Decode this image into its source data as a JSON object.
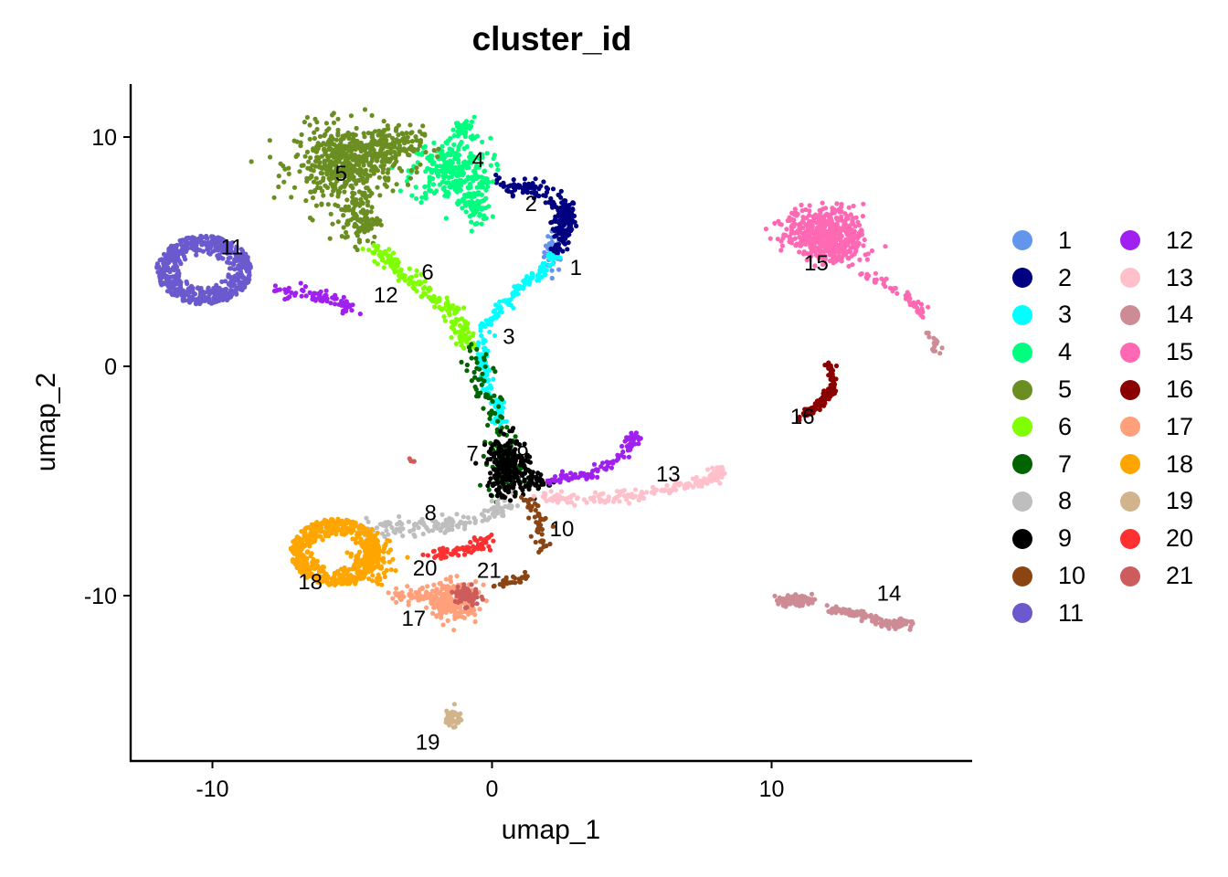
{
  "chart_data": {
    "type": "scatter",
    "title": "cluster_id",
    "xlabel": "umap_1",
    "ylabel": "umap_2",
    "xlim": [
      -12.9,
      17.2
    ],
    "ylim": [
      -17.2,
      12.4
    ],
    "x_ticks": [
      -10,
      0,
      10
    ],
    "y_ticks": [
      -10,
      0,
      10
    ],
    "x_tick_labels": [
      "-10",
      "0",
      "10"
    ],
    "y_tick_labels": [
      "-10",
      "0",
      "10"
    ],
    "grid": false,
    "legend_position": "right",
    "legend_columns": 2,
    "series": [
      {
        "name": "1",
        "color": "#6495ED",
        "label_pos": [
          3.0,
          4.3
        ],
        "blobs": [
          [
            2.2,
            5.0,
            0.3,
            0.8,
            40
          ]
        ]
      },
      {
        "name": "2",
        "color": "#000080",
        "label_pos": [
          1.4,
          7.1
        ],
        "blobs": [
          [
            2.6,
            6.4,
            0.35,
            0.9,
            120
          ],
          [
            1.2,
            7.8,
            0.8,
            0.3,
            50
          ]
        ],
        "paths": [
          [
            [
              0.0,
              8.2
            ],
            [
              1.5,
              7.6
            ],
            [
              2.5,
              6.8
            ],
            [
              2.5,
              5.5
            ],
            [
              2.3,
              4.9
            ]
          ],
          80,
          0.12
        ]
      },
      {
        "name": "3",
        "color": "#00FFFF",
        "label_pos": [
          0.6,
          1.3
        ],
        "paths": [
          [
            [
              2.3,
              4.8
            ],
            [
              1.5,
              3.9
            ],
            [
              0.6,
              3.0
            ],
            [
              -0.2,
              1.8
            ],
            [
              -0.4,
              0.0
            ],
            [
              0.1,
              -1.5
            ],
            [
              0.3,
              -2.5
            ]
          ],
          200,
          0.12
        ]
      },
      {
        "name": "4",
        "color": "#00FF7F",
        "label_pos": [
          -0.5,
          9.0
        ],
        "blobs": [
          [
            -1.5,
            8.5,
            1.3,
            1.3,
            260
          ],
          [
            -0.6,
            7.0,
            0.5,
            0.9,
            80
          ],
          [
            -1.0,
            10.3,
            0.4,
            0.5,
            40
          ]
        ]
      },
      {
        "name": "5",
        "color": "#6B8E23",
        "label_pos": [
          -5.4,
          8.4
        ],
        "blobs": [
          [
            -5.3,
            8.8,
            1.6,
            1.5,
            480
          ],
          [
            -3.8,
            9.6,
            1.2,
            0.8,
            160
          ],
          [
            -4.7,
            6.4,
            0.6,
            1.0,
            100
          ]
        ]
      },
      {
        "name": "6",
        "color": "#7FFF00",
        "label_pos": [
          -2.3,
          4.1
        ],
        "paths": [
          [
            [
              -4.3,
              5.2
            ],
            [
              -3.5,
              4.5
            ],
            [
              -2.5,
              3.5
            ],
            [
              -1.5,
              2.5
            ],
            [
              -1.0,
              1.5
            ],
            [
              -0.9,
              1.0
            ]
          ],
          180,
          0.18
        ]
      },
      {
        "name": "7",
        "color": "#006400",
        "label_pos": [
          -0.7,
          -3.8
        ],
        "blobs": [
          [
            0.5,
            -4.6,
            0.6,
            0.8,
            90
          ]
        ],
        "paths": [
          [
            [
              -0.7,
              0.8
            ],
            [
              -0.3,
              -1.0
            ],
            [
              0.3,
              -2.8
            ],
            [
              0.5,
              -4.8
            ]
          ],
          80,
          0.25
        ]
      },
      {
        "name": "8",
        "color": "#BEBEBE",
        "label_pos": [
          -2.2,
          -6.4
        ],
        "paths": [
          [
            [
              -4.6,
              -7.2
            ],
            [
              -3.0,
              -7.0
            ],
            [
              -1.5,
              -6.9
            ],
            [
              0.0,
              -6.5
            ],
            [
              0.6,
              -5.7
            ]
          ],
          150,
          0.2
        ]
      },
      {
        "name": "9",
        "color": "#000000",
        "label_pos": [
          1.1,
          -3.8
        ],
        "blobs": [
          [
            0.6,
            -4.4,
            0.7,
            1.2,
            220
          ],
          [
            1.6,
            -5.0,
            0.6,
            0.3,
            40
          ]
        ]
      },
      {
        "name": "10",
        "color": "#8B4513",
        "label_pos": [
          2.5,
          -7.1
        ],
        "paths": [
          [
            [
              1.3,
              -5.8
            ],
            [
              1.7,
              -6.8
            ],
            [
              1.8,
              -8.0
            ]
          ],
          50,
          0.12
        ],
        "extra_paths": [
          [
            [
              [
                0.0,
                -9.6
              ],
              [
                0.8,
                -9.3
              ],
              [
                1.4,
                -9.1
              ]
            ],
            25,
            0.1
          ]
        ]
      },
      {
        "name": "11",
        "color": "#6A5ACD",
        "label_pos": [
          -9.3,
          5.2
        ],
        "ring": [
          -10.3,
          4.2,
          1.7,
          1.5,
          600
        ]
      },
      {
        "name": "12",
        "color": "#A020F0",
        "label_pos": [
          -3.8,
          3.1
        ],
        "paths": [
          [
            [
              -8.0,
              3.3
            ],
            [
              -6.5,
              3.2
            ],
            [
              -5.6,
              3.0
            ],
            [
              -5.0,
              2.5
            ]
          ],
          70,
          0.14
        ],
        "extra_paths": [
          [
            [
              [
                2.0,
                -5.0
              ],
              [
                3.5,
                -4.7
              ],
              [
                4.5,
                -4.1
              ],
              [
                5.2,
                -3.0
              ]
            ],
            100,
            0.12
          ]
        ]
      },
      {
        "name": "13",
        "color": "#FFC0CB",
        "label_pos": [
          6.3,
          -4.7
        ],
        "paths": [
          [
            [
              1.8,
              -5.7
            ],
            [
              3.5,
              -5.8
            ],
            [
              5.0,
              -5.7
            ],
            [
              6.5,
              -5.3
            ],
            [
              7.8,
              -4.9
            ],
            [
              8.2,
              -4.5
            ]
          ],
          200,
          0.12
        ]
      },
      {
        "name": "14",
        "color": "#CD8C95",
        "label_pos": [
          14.2,
          -9.9
        ],
        "blobs": [
          [
            10.8,
            -10.2,
            0.6,
            0.2,
            90
          ],
          [
            14.4,
            -11.2,
            0.6,
            0.2,
            70
          ]
        ],
        "paths": [
          [
            [
              11.8,
              -10.5
            ],
            [
              13.0,
              -10.8
            ],
            [
              14.0,
              -11.1
            ]
          ],
          60,
          0.08
        ],
        "extra_paths": [
          [
            [
              [
                15.6,
                1.6
              ],
              [
                15.9,
                1.0
              ],
              [
                15.9,
                0.6
              ]
            ],
            15,
            0.08
          ]
        ]
      },
      {
        "name": "15",
        "color": "#FF69B4",
        "label_pos": [
          11.6,
          4.5
        ],
        "blobs": [
          [
            11.9,
            5.9,
            1.3,
            0.9,
            420
          ],
          [
            12.2,
            5.0,
            0.8,
            0.6,
            120
          ]
        ],
        "paths": [
          [
            [
              12.8,
              4.5
            ],
            [
              14.0,
              3.6
            ],
            [
              15.0,
              2.9
            ],
            [
              15.5,
              2.1
            ]
          ],
          50,
          0.12
        ]
      },
      {
        "name": "16",
        "color": "#8B0000",
        "label_pos": [
          11.1,
          -2.2
        ],
        "paths": [
          [
            [
              11.1,
              -2.2
            ],
            [
              11.8,
              -1.6
            ],
            [
              12.2,
              -1.0
            ],
            [
              12.1,
              0.2
            ]
          ],
          120,
          0.08
        ]
      },
      {
        "name": "17",
        "color": "#FFA07A",
        "label_pos": [
          -2.8,
          -11.0
        ],
        "blobs": [
          [
            -1.4,
            -10.2,
            0.8,
            0.7,
            260
          ],
          [
            -3.0,
            -10.0,
            0.7,
            0.3,
            40
          ]
        ]
      },
      {
        "name": "18",
        "color": "#FFA500",
        "label_pos": [
          -6.5,
          -9.4
        ],
        "ring": [
          -5.6,
          -8.1,
          1.6,
          1.45,
          560
        ],
        "blobs": [
          [
            -4.2,
            -8.5,
            0.6,
            0.9,
            100
          ]
        ]
      },
      {
        "name": "19",
        "color": "#D2B48C",
        "label_pos": [
          -2.3,
          -16.4
        ],
        "blobs": [
          [
            -1.4,
            -15.3,
            0.25,
            0.4,
            40
          ]
        ]
      },
      {
        "name": "20",
        "color": "#FF3030",
        "label_pos": [
          -2.4,
          -8.8
        ],
        "paths": [
          [
            [
              -2.2,
              -8.2
            ],
            [
              -1.4,
              -8.1
            ],
            [
              -0.5,
              -7.8
            ],
            [
              -0.1,
              -7.5
            ]
          ],
          70,
          0.15
        ]
      },
      {
        "name": "21",
        "color": "#CD5C5C",
        "label_pos": [
          -0.1,
          -8.9
        ],
        "blobs": [
          [
            -0.9,
            -10.0,
            0.4,
            0.5,
            60
          ]
        ],
        "extra_paths": [
          [
            [
              [
                -2.9,
                -4.0
              ],
              [
                -2.8,
                -4.2
              ]
            ],
            4,
            0.03
          ]
        ]
      }
    ]
  }
}
